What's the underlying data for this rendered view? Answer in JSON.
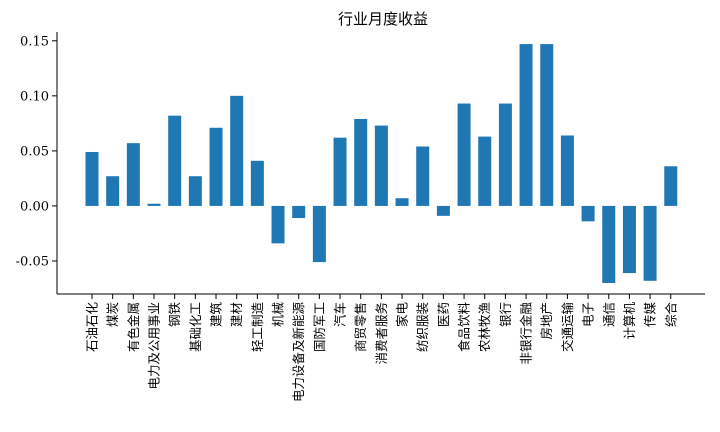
{
  "chart_data": {
    "type": "bar",
    "title": "行业月度收益",
    "xlabel": "",
    "ylabel": "",
    "ylim": [
      -0.08,
      0.158
    ],
    "yticks": [
      -0.05,
      0.0,
      0.05,
      0.1,
      0.15
    ],
    "ytick_labels": [
      "-0.05",
      "0.00",
      "0.05",
      "0.10",
      "0.15"
    ],
    "grid": false,
    "legend": "none",
    "bar_color": "#1f77b4",
    "categories": [
      "石油石化",
      "煤炭",
      "有色金属",
      "电力及公用事业",
      "钢铁",
      "基础化工",
      "建筑",
      "建材",
      "轻工制造",
      "机械",
      "电力设备及新能源",
      "国防军工",
      "汽车",
      "商贸零售",
      "消费者服务",
      "家电",
      "纺织服装",
      "医药",
      "食品饮料",
      "农林牧渔",
      "银行",
      "非银行金融",
      "房地产",
      "交通运输",
      "电子",
      "通信",
      "计算机",
      "传媒",
      "综合"
    ],
    "values": [
      0.049,
      0.027,
      0.057,
      0.002,
      0.082,
      0.027,
      0.071,
      0.1,
      0.041,
      -0.034,
      -0.011,
      -0.051,
      0.062,
      0.079,
      0.073,
      0.007,
      0.054,
      -0.009,
      0.093,
      0.063,
      0.093,
      0.147,
      0.147,
      0.064,
      -0.014,
      -0.07,
      -0.061,
      -0.068,
      0.036
    ]
  }
}
